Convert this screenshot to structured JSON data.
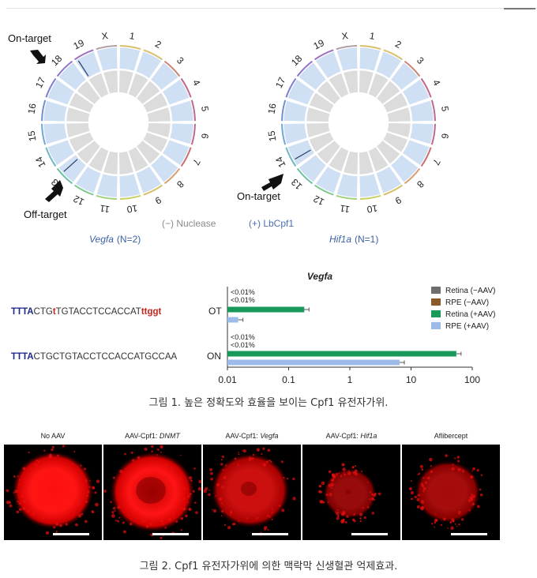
{
  "circos": {
    "left": {
      "chromosomes": [
        "1",
        "2",
        "3",
        "4",
        "5",
        "6",
        "7",
        "8",
        "9",
        "10",
        "11",
        "12",
        "13",
        "14",
        "15",
        "16",
        "17",
        "18",
        "19",
        "X"
      ],
      "gene": "Vegfa",
      "n_label": "(N=2)",
      "on_target_label": "On-target",
      "off_target_label": "Off-target"
    },
    "right": {
      "chromosomes": [
        "1",
        "2",
        "3",
        "4",
        "5",
        "6",
        "7",
        "8",
        "9",
        "10",
        "11",
        "12",
        "13",
        "14",
        "15",
        "16",
        "17",
        "18",
        "19",
        "X"
      ],
      "gene": "Hif1a",
      "n_label": "(N=1)",
      "on_target_label": "On-target"
    },
    "legend_nuclease_minus": "(−) Nuclease",
    "legend_nuclease_plus": "(+) LbCpf1",
    "colors": {
      "outer_ring": "#cfdff4",
      "inner_ring": "#dcdcdc",
      "legend_minus": "#8a8a8a",
      "legend_plus": "#4a6fb0"
    }
  },
  "bar_section": {
    "seq_ot": {
      "prefix": "TTTA",
      "part1": "CTG",
      "mismatch": "t",
      "part2": "TGTACCTCCACCAT",
      "suffix": "ttggt",
      "label": "OT"
    },
    "seq_on": {
      "prefix": "TTTA",
      "body": "CTGCTGTACCTCCACCATGCCAA",
      "label": "ON"
    }
  },
  "chart_data": {
    "type": "bar",
    "orientation": "horizontal",
    "title": "Vegfa",
    "xscale": "log",
    "xlim": [
      0.01,
      100
    ],
    "xticks": [
      "0.01",
      "0.1",
      "1",
      "10",
      "100"
    ],
    "categories": [
      "OT",
      "ON"
    ],
    "series": [
      {
        "name": "Retina (−AAV)",
        "color": "#6e6e6e",
        "values": [
          null,
          null
        ]
      },
      {
        "name": "RPE (−AAV)",
        "color": "#8b5a2b",
        "values": [
          null,
          null
        ]
      },
      {
        "name": "Retina (+AAV)",
        "color": "#1a9a5a",
        "values": [
          0.18,
          55
        ]
      },
      {
        "name": "RPE (+AAV)",
        "color": "#9dbbe9",
        "values": [
          0.015,
          6.5
        ]
      }
    ],
    "annotations": [
      "<0.01%",
      "<0.01%",
      "<0.01%",
      "<0.01%"
    ],
    "legend_position": "top-right"
  },
  "caption1": "그림 1. 높은 정확도와 효율을 보이는 Cpf1 유전자가위.",
  "panels": [
    {
      "prefix": "No AAV",
      "italic": ""
    },
    {
      "prefix": "AAV-Cpf1: ",
      "italic": "DNMT"
    },
    {
      "prefix": "AAV-Cpf1: ",
      "italic": "Vegfa"
    },
    {
      "prefix": "AAV-Cpf1: ",
      "italic": "Hif1a"
    },
    {
      "prefix": "Aflibercept",
      "italic": ""
    }
  ],
  "caption2": "그림 2. Cpf1 유전자가위에 의한 맥락막 신생혈관 억제효과."
}
